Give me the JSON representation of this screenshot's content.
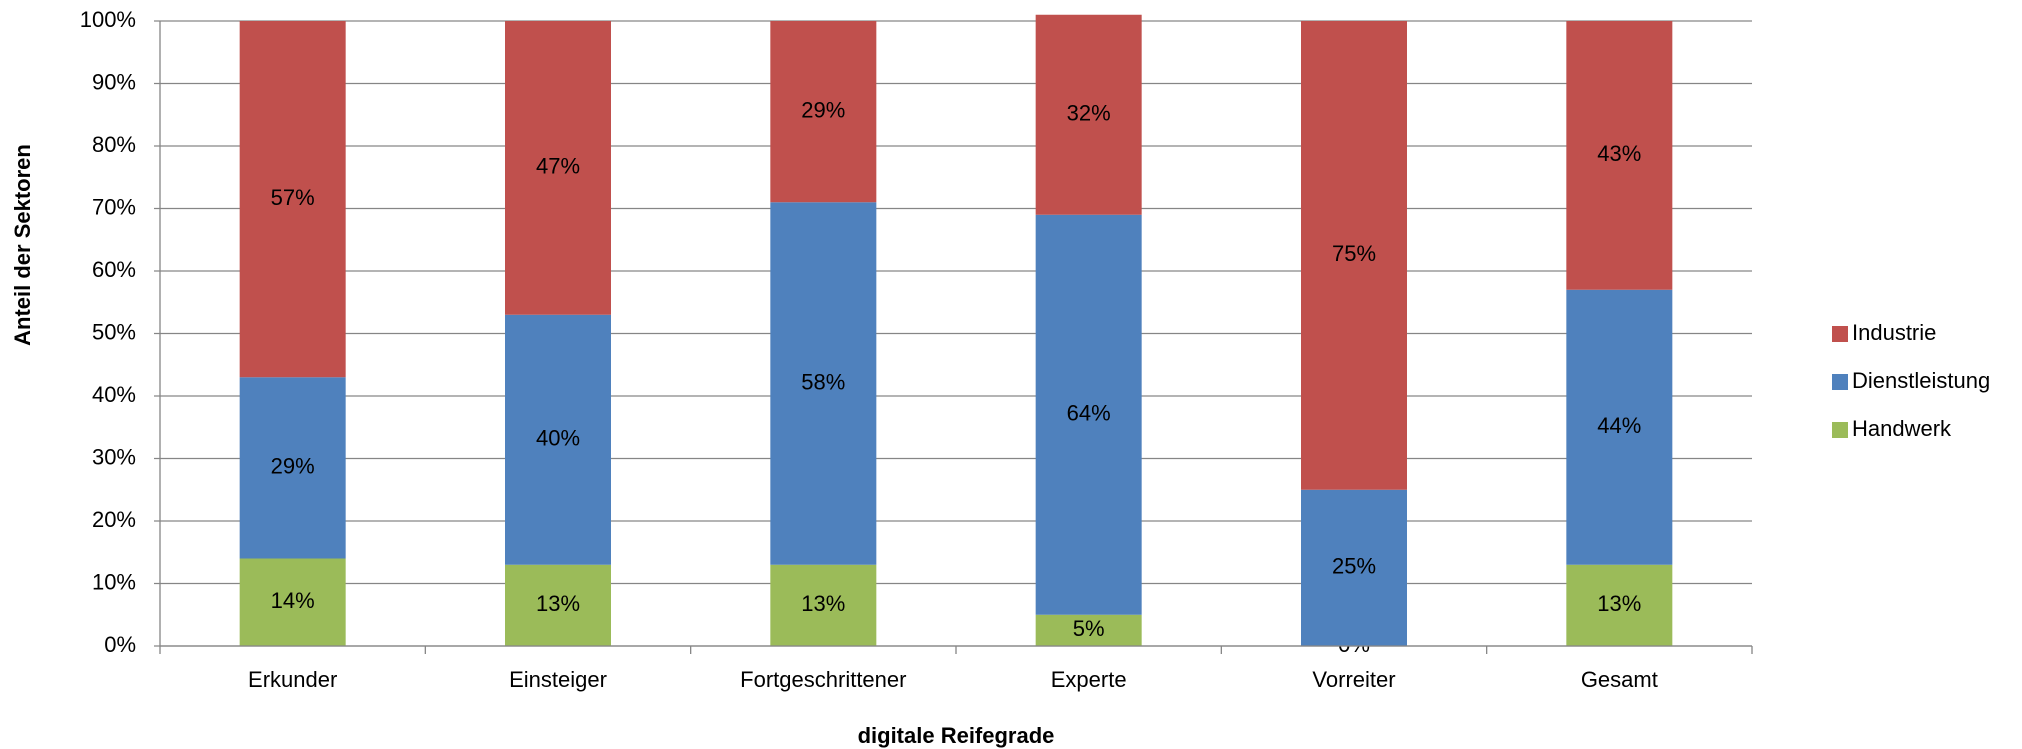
{
  "chart_data": {
    "type": "stacked_bar",
    "x_label": "digitale Reifegrade",
    "y_label": "Anteil der Sektoren",
    "categories": [
      "Erkunder",
      "Einsteiger",
      "Fortgeschrittener",
      "Experte",
      "Vorreiter",
      "Gesamt"
    ],
    "series": [
      {
        "name": "Handwerk",
        "color": "#9bbb59",
        "values": [
          14,
          13,
          13,
          5,
          0,
          13
        ],
        "value_labels": [
          "14%",
          "13%",
          "13%",
          "5%",
          "0%",
          "13%"
        ]
      },
      {
        "name": "Dienstleistung",
        "color": "#4f81bd",
        "values": [
          29,
          40,
          58,
          64,
          25,
          44
        ],
        "value_labels": [
          "29%",
          "40%",
          "58%",
          "64%",
          "25%",
          "44%"
        ]
      },
      {
        "name": "Industrie",
        "color": "#c0504d",
        "values": [
          57,
          47,
          29,
          32,
          75,
          43
        ],
        "value_labels": [
          "57%",
          "47%",
          "29%",
          "32%",
          "75%",
          "43%"
        ]
      }
    ],
    "ylim": [
      0,
      100
    ],
    "yticks": [
      {
        "value": 0,
        "label": "0%"
      },
      {
        "value": 10,
        "label": "10%"
      },
      {
        "value": 20,
        "label": "20%"
      },
      {
        "value": 30,
        "label": "30%"
      },
      {
        "value": 40,
        "label": "40%"
      },
      {
        "value": 50,
        "label": "50%"
      },
      {
        "value": 60,
        "label": "60%"
      },
      {
        "value": 70,
        "label": "70%"
      },
      {
        "value": 80,
        "label": "80%"
      },
      {
        "value": 90,
        "label": "90%"
      },
      {
        "value": 100,
        "label": "100%"
      }
    ],
    "grid": true,
    "legend": "right"
  }
}
